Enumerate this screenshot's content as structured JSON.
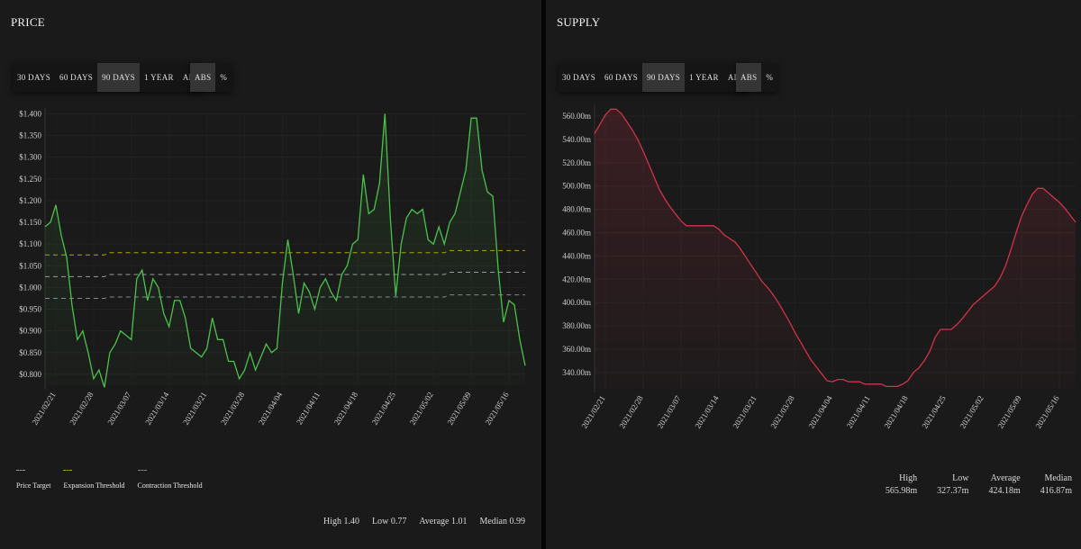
{
  "price": {
    "title": "PRICE",
    "range_buttons": [
      "30 DAYS",
      "60 DAYS",
      "90 DAYS",
      "1 YEAR",
      "ALL"
    ],
    "active_range": "90 DAYS",
    "mode_buttons": [
      "ABS",
      "%"
    ],
    "active_mode": "ABS",
    "legend": [
      {
        "label": "Price Target",
        "color": "#9a9a9a"
      },
      {
        "label": "Expansion Threshold",
        "color": "#b3a300"
      },
      {
        "label": "Contraction Threshold",
        "color": "#7f8a8f"
      }
    ],
    "stats": {
      "high": "High 1.40",
      "low": "Low 0.77",
      "average": "Average 1.01",
      "median": "Median 0.99"
    }
  },
  "supply": {
    "title": "SUPPLY",
    "range_buttons": [
      "30 DAYS",
      "60 DAYS",
      "90 DAYS",
      "1 YEAR",
      "ALL"
    ],
    "active_range": "90 DAYS",
    "mode_buttons": [
      "ABS",
      "%"
    ],
    "active_mode": "ABS",
    "stats": [
      {
        "label": "High",
        "value": "565.98m"
      },
      {
        "label": "Low",
        "value": "327.37m"
      },
      {
        "label": "Average",
        "value": "424.18m"
      },
      {
        "label": "Median",
        "value": "416.87m"
      }
    ]
  },
  "chart_data": [
    {
      "type": "line",
      "title": "PRICE",
      "color": "#4bc24b",
      "ylim": [
        0.775,
        1.405
      ],
      "y_ticks": [
        "$0.800",
        "$0.850",
        "$0.900",
        "$0.950",
        "$1.000",
        "$1.050",
        "$1.100",
        "$1.150",
        "$1.200",
        "$1.250",
        "$1.300",
        "$1.350",
        "$1.400"
      ],
      "y_tick_values": [
        0.8,
        0.85,
        0.9,
        0.95,
        1.0,
        1.05,
        1.1,
        1.15,
        1.2,
        1.25,
        1.3,
        1.35,
        1.4
      ],
      "x_ticks": [
        "2021/02/21",
        "2021/02/28",
        "2021/03/07",
        "2021/03/14",
        "2021/03/21",
        "2021/03/28",
        "2021/04/04",
        "2021/04/11",
        "2021/04/18",
        "2021/04/25",
        "2021/05/02",
        "2021/05/09",
        "2021/05/16"
      ],
      "x_tick_index": [
        2,
        9,
        16,
        23,
        30,
        37,
        44,
        51,
        58,
        65,
        72,
        79,
        86
      ],
      "series": [
        {
          "values": [
            1.14,
            1.15,
            1.19,
            1.12,
            1.07,
            0.96,
            0.88,
            0.9,
            0.85,
            0.79,
            0.81,
            0.77,
            0.85,
            0.87,
            0.9,
            0.89,
            0.88,
            1.02,
            1.04,
            0.97,
            1.02,
            1.0,
            0.94,
            0.91,
            0.97,
            0.97,
            0.93,
            0.86,
            0.85,
            0.84,
            0.86,
            0.93,
            0.88,
            0.88,
            0.83,
            0.83,
            0.79,
            0.81,
            0.85,
            0.81,
            0.84,
            0.87,
            0.85,
            0.86,
            1.01,
            1.11,
            1.03,
            0.94,
            1.01,
            0.99,
            0.95,
            1.0,
            1.02,
            0.99,
            0.97,
            1.03,
            1.05,
            1.1,
            1.11,
            1.26,
            1.17,
            1.18,
            1.24,
            1.4,
            1.16,
            0.98,
            1.1,
            1.16,
            1.18,
            1.17,
            1.18,
            1.11,
            1.1,
            1.14,
            1.1,
            1.15,
            1.17,
            1.22,
            1.27,
            1.39,
            1.39,
            1.27,
            1.22,
            1.21,
            1.04,
            0.92,
            0.97,
            0.96,
            0.88,
            0.82
          ]
        },
        {
          "name": "Expansion Threshold",
          "color": "#b3a300",
          "dash": true,
          "values": [
            1.075,
            1.075,
            1.075,
            1.075,
            1.075,
            1.075,
            1.075,
            1.075,
            1.075,
            1.075,
            1.075,
            1.075,
            1.08,
            1.08,
            1.08,
            1.08,
            1.08,
            1.08,
            1.08,
            1.08,
            1.08,
            1.08,
            1.08,
            1.08,
            1.08,
            1.08,
            1.08,
            1.08,
            1.08,
            1.08,
            1.08,
            1.08,
            1.08,
            1.08,
            1.08,
            1.08,
            1.08,
            1.08,
            1.08,
            1.08,
            1.08,
            1.08,
            1.08,
            1.08,
            1.08,
            1.08,
            1.08,
            1.08,
            1.08,
            1.08,
            1.08,
            1.08,
            1.08,
            1.08,
            1.08,
            1.08,
            1.08,
            1.08,
            1.08,
            1.08,
            1.08,
            1.08,
            1.08,
            1.08,
            1.08,
            1.08,
            1.08,
            1.08,
            1.08,
            1.08,
            1.08,
            1.08,
            1.08,
            1.08,
            1.08,
            1.085,
            1.085,
            1.085,
            1.085,
            1.085,
            1.085,
            1.085,
            1.085,
            1.085,
            1.085,
            1.085,
            1.085,
            1.085,
            1.085,
            1.085
          ]
        },
        {
          "name": "Price Target",
          "color": "#9a9a9a",
          "dash": true,
          "values": [
            1.025,
            1.025,
            1.025,
            1.025,
            1.025,
            1.025,
            1.025,
            1.025,
            1.025,
            1.025,
            1.025,
            1.025,
            1.03,
            1.03,
            1.03,
            1.03,
            1.03,
            1.03,
            1.03,
            1.03,
            1.03,
            1.03,
            1.03,
            1.03,
            1.03,
            1.03,
            1.03,
            1.03,
            1.03,
            1.03,
            1.03,
            1.03,
            1.03,
            1.03,
            1.03,
            1.03,
            1.03,
            1.03,
            1.03,
            1.03,
            1.03,
            1.03,
            1.03,
            1.03,
            1.03,
            1.03,
            1.03,
            1.03,
            1.03,
            1.03,
            1.03,
            1.03,
            1.03,
            1.03,
            1.03,
            1.03,
            1.03,
            1.03,
            1.03,
            1.03,
            1.03,
            1.03,
            1.03,
            1.03,
            1.03,
            1.03,
            1.03,
            1.03,
            1.03,
            1.03,
            1.03,
            1.03,
            1.03,
            1.03,
            1.03,
            1.035,
            1.035,
            1.035,
            1.035,
            1.035,
            1.035,
            1.035,
            1.035,
            1.035,
            1.035,
            1.035,
            1.035,
            1.035,
            1.035,
            1.035
          ]
        },
        {
          "name": "Contraction Threshold",
          "color": "#7f8a8f",
          "dash": true,
          "values": [
            0.975,
            0.975,
            0.975,
            0.975,
            0.975,
            0.975,
            0.975,
            0.975,
            0.975,
            0.975,
            0.975,
            0.975,
            0.978,
            0.978,
            0.978,
            0.978,
            0.978,
            0.978,
            0.978,
            0.978,
            0.978,
            0.978,
            0.978,
            0.978,
            0.978,
            0.978,
            0.978,
            0.978,
            0.978,
            0.978,
            0.978,
            0.978,
            0.978,
            0.978,
            0.978,
            0.978,
            0.978,
            0.978,
            0.978,
            0.978,
            0.978,
            0.978,
            0.978,
            0.978,
            0.978,
            0.978,
            0.978,
            0.978,
            0.978,
            0.978,
            0.978,
            0.978,
            0.978,
            0.978,
            0.978,
            0.978,
            0.978,
            0.978,
            0.978,
            0.978,
            0.978,
            0.978,
            0.978,
            0.978,
            0.978,
            0.978,
            0.978,
            0.978,
            0.978,
            0.978,
            0.978,
            0.978,
            0.978,
            0.978,
            0.978,
            0.983,
            0.983,
            0.983,
            0.983,
            0.983,
            0.983,
            0.983,
            0.983,
            0.983,
            0.983,
            0.983,
            0.983,
            0.983,
            0.983,
            0.983
          ]
        }
      ]
    },
    {
      "type": "area",
      "title": "SUPPLY",
      "color": "#d1324a",
      "ylim": [
        326,
        567
      ],
      "y_ticks": [
        "340.00m",
        "360.00m",
        "380.00m",
        "400.00m",
        "420.00m",
        "440.00m",
        "460.00m",
        "480.00m",
        "500.00m",
        "520.00m",
        "540.00m",
        "560.00m"
      ],
      "y_tick_values": [
        340,
        360,
        380,
        400,
        420,
        440,
        460,
        480,
        500,
        520,
        540,
        560
      ],
      "x_ticks": [
        "2021/02/21",
        "2021/02/28",
        "2021/03/07",
        "2021/03/14",
        "2021/03/21",
        "2021/03/28",
        "2021/04/04",
        "2021/04/11",
        "2021/04/18",
        "2021/04/25",
        "2021/05/02",
        "2021/05/09",
        "2021/05/16"
      ],
      "x_tick_index": [
        2,
        9,
        16,
        23,
        30,
        37,
        44,
        51,
        58,
        65,
        72,
        79,
        86
      ],
      "series": [
        {
          "values": [
            545,
            553,
            561,
            566,
            566,
            562,
            555,
            548,
            540,
            530,
            519,
            508,
            497,
            489,
            482,
            476,
            470,
            466,
            466,
            466,
            466,
            466,
            466,
            463,
            458,
            455,
            452,
            446,
            439,
            432,
            425,
            418,
            413,
            407,
            400,
            392,
            384,
            375,
            367,
            359,
            351,
            345,
            339,
            333,
            332,
            334,
            334,
            332,
            332,
            332,
            330,
            330,
            330,
            330,
            328,
            328,
            328,
            330,
            333,
            340,
            344,
            350,
            358,
            370,
            377,
            377,
            377,
            381,
            386,
            392,
            398,
            402,
            406,
            410,
            414,
            421,
            431,
            445,
            460,
            474,
            484,
            493,
            498,
            498,
            494,
            490,
            486,
            481,
            475,
            469
          ]
        }
      ]
    }
  ]
}
